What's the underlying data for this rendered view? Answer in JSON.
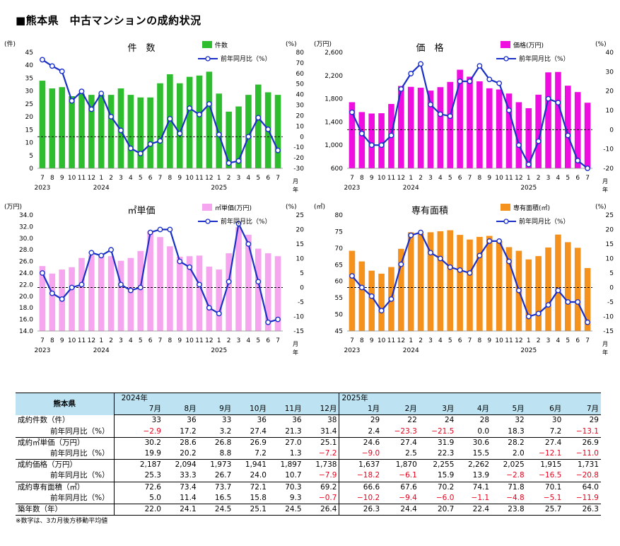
{
  "page_title": "■熊本県　中古マンションの成約状況",
  "colors": {
    "line": "#1a2fc8",
    "green": "#2ebd2e",
    "magenta": "#ee0ee0",
    "pink": "#f6a6ee",
    "orange": "#f5921e",
    "header_bg": "#bde3f2",
    "negative": "#e8001c"
  },
  "chart_data": [
    {
      "type": "bar+line",
      "title": "件　数",
      "left_unit": "(件)",
      "right_unit": "(%)",
      "bar_color": "#2ebd2e",
      "bar_legend": "件数",
      "line_legend": "前年同月比（%）",
      "ylim": [
        0,
        45
      ],
      "y_ticks": [
        0,
        5,
        10,
        15,
        20,
        25,
        30,
        35,
        40,
        45
      ],
      "y_tick_labels": [
        "0",
        "5",
        "10",
        "15",
        "20",
        "25",
        "30",
        "35",
        "40",
        "45"
      ],
      "y2lim": [
        -30,
        80
      ],
      "y2_ticks": [
        -30,
        -20,
        -10,
        0,
        10,
        20,
        30,
        40,
        50,
        60,
        70,
        80
      ],
      "x_labels": [
        "7",
        "8",
        "9",
        "10",
        "11",
        "12",
        "1",
        "2",
        "3",
        "4",
        "5",
        "6",
        "7",
        "8",
        "9",
        "10",
        "11",
        "12",
        "1",
        "2",
        "3",
        "4",
        "5",
        "6",
        "7"
      ],
      "year_labels": [
        {
          "text": "2023",
          "index": 0
        },
        {
          "text": "2024",
          "index": 6
        },
        {
          "text": "2025",
          "index": 18
        }
      ],
      "axis_suffix": [
        "月",
        "年"
      ],
      "bars": [
        34,
        31,
        31.5,
        28,
        29,
        28.5,
        28.5,
        28.5,
        31,
        28.5,
        27.5,
        27.5,
        33,
        36.5,
        33,
        35.5,
        36,
        37.5,
        29,
        22,
        24,
        28.5,
        32.5,
        29.5,
        28.5
      ],
      "line": [
        73,
        67,
        62,
        34,
        43,
        26,
        41,
        19,
        6,
        -11,
        -16,
        -7,
        -4,
        17,
        3,
        27,
        21,
        31,
        2,
        -25,
        -23,
        0,
        18,
        7,
        -13
      ]
    },
    {
      "type": "bar+line",
      "title": "価　格",
      "left_unit": "(万円)",
      "right_unit": "(%)",
      "bar_color": "#ee0ee0",
      "bar_legend": "価格(万円)",
      "line_legend": "前年同月比（%）",
      "ylim": [
        600,
        2600
      ],
      "y_ticks": [
        600,
        1000,
        1400,
        1800,
        2200,
        2600
      ],
      "y_tick_labels": [
        "600",
        "1,000",
        "1,400",
        "1,800",
        "2,200",
        "2,600"
      ],
      "y2lim": [
        -20,
        40
      ],
      "y2_ticks": [
        -20,
        -10,
        0,
        10,
        20,
        30,
        40
      ],
      "x_labels": [
        "7",
        "8",
        "9",
        "10",
        "11",
        "12",
        "1",
        "2",
        "3",
        "4",
        "5",
        "6",
        "7",
        "8",
        "9",
        "10",
        "11",
        "12",
        "1",
        "2",
        "3",
        "4",
        "5",
        "6",
        "7"
      ],
      "year_labels": [
        {
          "text": "2023",
          "index": 0
        },
        {
          "text": "2024",
          "index": 6
        },
        {
          "text": "2025",
          "index": 18
        }
      ],
      "axis_suffix": [
        "月",
        "年"
      ],
      "bars": [
        1740,
        1570,
        1545,
        1550,
        1710,
        2020,
        2005,
        1990,
        1940,
        2000,
        2090,
        2300,
        2180,
        2100,
        1980,
        1960,
        1890,
        1740,
        1637,
        1870,
        2255,
        2262,
        2025,
        1915,
        1731
      ],
      "line": [
        9,
        -2,
        -8,
        -8,
        -3,
        21,
        29,
        34,
        13,
        8,
        7,
        25,
        25,
        33,
        26,
        24,
        10,
        -8,
        -18,
        -6,
        16,
        14,
        -3,
        -16,
        -20
      ]
    },
    {
      "type": "bar+line",
      "title": "㎡単価",
      "left_unit": "(万円)",
      "right_unit": "(%)",
      "bar_color": "#f6a6ee",
      "bar_legend": "㎡単価(万円)",
      "line_legend": "前年同月比（%）",
      "ylim": [
        14,
        34
      ],
      "y_ticks": [
        14,
        16,
        18,
        20,
        22,
        24,
        26,
        28,
        30,
        32,
        34
      ],
      "y_tick_labels": [
        "14.0",
        "16.0",
        "18.0",
        "20.0",
        "22.0",
        "24.0",
        "26.0",
        "28.0",
        "30.0",
        "32.0",
        "34.0"
      ],
      "y2lim": [
        -15,
        25
      ],
      "y2_ticks": [
        -15,
        -10,
        -5,
        0,
        5,
        10,
        15,
        20,
        25
      ],
      "x_labels": [
        "7",
        "8",
        "9",
        "10",
        "11",
        "12",
        "1",
        "2",
        "3",
        "4",
        "5",
        "6",
        "7",
        "8",
        "9",
        "10",
        "11",
        "12",
        "1",
        "2",
        "3",
        "4",
        "5",
        "6",
        "7"
      ],
      "year_labels": [
        {
          "text": "2023",
          "index": 0
        },
        {
          "text": "2024",
          "index": 6
        },
        {
          "text": "2025",
          "index": 18
        }
      ],
      "axis_suffix": [
        "月",
        "年"
      ],
      "bars": [
        25.2,
        23.9,
        24.6,
        25.0,
        26.6,
        27.1,
        27.1,
        26.9,
        26.1,
        26.6,
        27.8,
        31.2,
        30.2,
        28.6,
        26.8,
        26.9,
        27.0,
        25.1,
        24.6,
        27.4,
        31.9,
        30.6,
        28.2,
        27.4,
        26.9
      ],
      "line": [
        5,
        -2,
        -4,
        0,
        1,
        12,
        11,
        13,
        1,
        -1,
        0,
        19,
        20,
        20,
        9,
        7,
        1,
        -7,
        -9,
        2,
        22,
        15,
        2,
        -12,
        -11
      ]
    },
    {
      "type": "bar+line",
      "title": "専有面積",
      "left_unit": "(㎡)",
      "right_unit": "(%)",
      "bar_color": "#f5921e",
      "bar_legend": "専有面積(㎡)",
      "line_legend": "前年同月比（%）",
      "ylim": [
        45,
        80
      ],
      "y_ticks": [
        45,
        50,
        55,
        60,
        65,
        70,
        75,
        80
      ],
      "y_tick_labels": [
        "45",
        "50",
        "55",
        "60",
        "65",
        "70",
        "75",
        "80"
      ],
      "y2lim": [
        -15,
        25
      ],
      "y2_ticks": [
        -15,
        -10,
        -5,
        0,
        5,
        10,
        15,
        20,
        25
      ],
      "x_labels": [
        "7",
        "8",
        "9",
        "10",
        "11",
        "12",
        "1",
        "2",
        "3",
        "4",
        "5",
        "6",
        "7",
        "8",
        "9",
        "10",
        "11",
        "12",
        "1",
        "2",
        "3",
        "4",
        "5",
        "6",
        "7"
      ],
      "year_labels": [
        {
          "text": "2023",
          "index": 0
        },
        {
          "text": "2024",
          "index": 6
        },
        {
          "text": "2025",
          "index": 18
        }
      ],
      "axis_suffix": [
        "月",
        "年"
      ],
      "bars": [
        69.2,
        66,
        63.2,
        62.3,
        64.3,
        69.8,
        74.8,
        74.4,
        74.8,
        75.1,
        75.4,
        74,
        72.6,
        73.4,
        73.7,
        72.1,
        70.3,
        69.2,
        66.6,
        67.6,
        70.2,
        74.1,
        71.8,
        70.1,
        64
      ],
      "line": [
        4,
        0,
        -3,
        -8,
        -4,
        8,
        18,
        19,
        12,
        10,
        7,
        6,
        5,
        11,
        16,
        16,
        9,
        -1,
        -10,
        -9,
        -6,
        -1,
        -5,
        -5,
        -12
      ]
    }
  ],
  "table": {
    "corner": "熊本県",
    "year_2024": "2024年",
    "year_2025": "2025年",
    "months": [
      "7月",
      "8月",
      "9月",
      "10月",
      "11月",
      "12月",
      "1月",
      "2月",
      "3月",
      "4月",
      "5月",
      "6月",
      "7月"
    ],
    "rows": [
      {
        "label": "成約件数（件）",
        "values": [
          "33",
          "36",
          "33",
          "36",
          "36",
          "38",
          "29",
          "22",
          "24",
          "28",
          "32",
          "30",
          "29"
        ]
      },
      {
        "label": "前年同月比（%）",
        "sub": true,
        "values": [
          "−2.9",
          "17.2",
          "3.2",
          "27.4",
          "21.3",
          "31.4",
          "2.4",
          "−23.3",
          "−21.5",
          "0.0",
          "18.3",
          "7.2",
          "−13.1"
        ]
      },
      {
        "label": "成約㎡単価（万円）",
        "values": [
          "30.2",
          "28.6",
          "26.8",
          "26.9",
          "27.0",
          "25.1",
          "24.6",
          "27.4",
          "31.9",
          "30.6",
          "28.2",
          "27.4",
          "26.9"
        ]
      },
      {
        "label": "前年同月比（%）",
        "sub": true,
        "values": [
          "19.9",
          "20.2",
          "8.8",
          "7.2",
          "1.3",
          "−7.2",
          "−9.0",
          "2.5",
          "22.3",
          "15.5",
          "2.0",
          "−12.1",
          "−11.0"
        ]
      },
      {
        "label": "成約価格（万円）",
        "values": [
          "2,187",
          "2,094",
          "1,973",
          "1,941",
          "1,897",
          "1,738",
          "1,637",
          "1,870",
          "2,255",
          "2,262",
          "2,025",
          "1,915",
          "1,731"
        ]
      },
      {
        "label": "前年同月比（%）",
        "sub": true,
        "values": [
          "25.3",
          "33.3",
          "26.7",
          "24.0",
          "10.7",
          "−7.9",
          "−18.2",
          "−6.1",
          "15.9",
          "13.9",
          "−2.8",
          "−16.5",
          "−20.8"
        ]
      },
      {
        "label": "成約専有面積（㎡）",
        "values": [
          "72.6",
          "73.4",
          "73.7",
          "72.1",
          "70.3",
          "69.2",
          "66.6",
          "67.6",
          "70.2",
          "74.1",
          "71.8",
          "70.1",
          "64.0"
        ]
      },
      {
        "label": "前年同月比（%）",
        "sub": true,
        "values": [
          "5.0",
          "11.4",
          "16.5",
          "15.8",
          "9.3",
          "−0.7",
          "−10.2",
          "−9.4",
          "−6.0",
          "−1.1",
          "−4.8",
          "−5.1",
          "−11.9"
        ]
      },
      {
        "label": "築年数（年）",
        "values": [
          "22.0",
          "24.1",
          "24.5",
          "25.1",
          "24.5",
          "26.4",
          "26.3",
          "24.4",
          "20.7",
          "22.4",
          "23.8",
          "25.7",
          "26.3"
        ]
      }
    ]
  },
  "note": "※数字は、3カ月後方移動平均値"
}
